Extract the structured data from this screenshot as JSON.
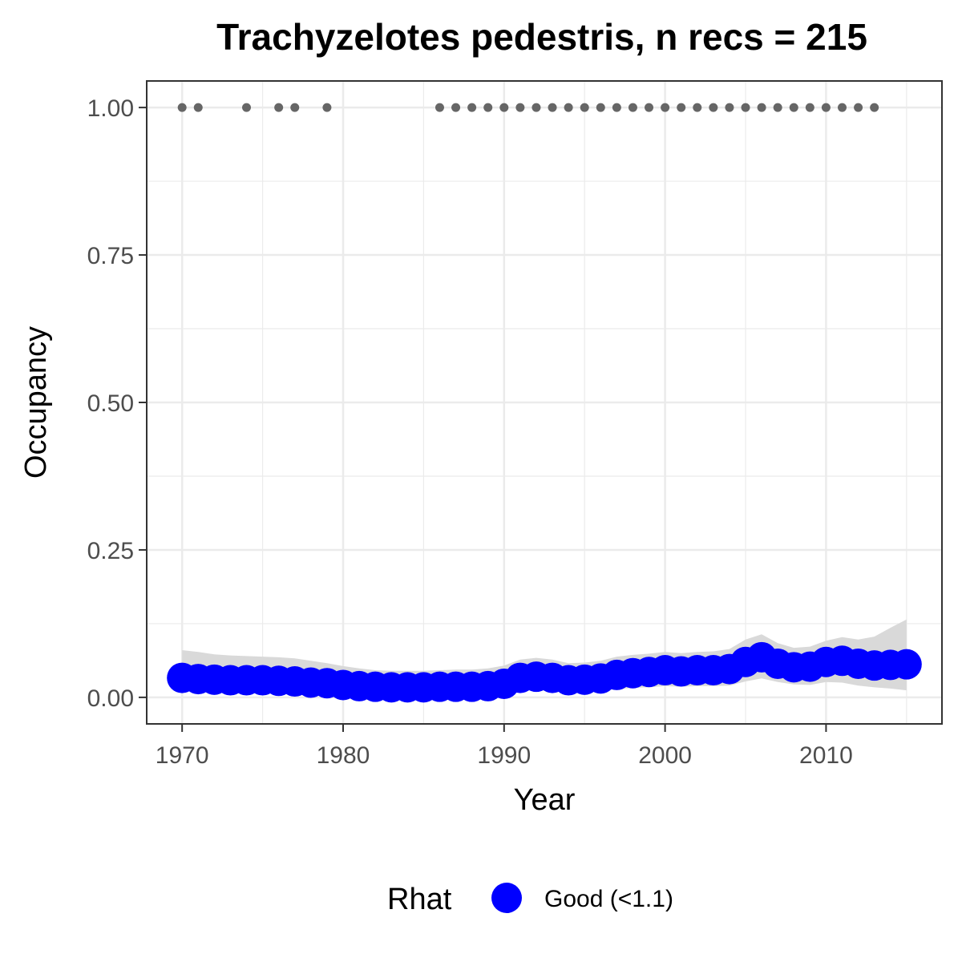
{
  "chart_data": {
    "type": "line",
    "title": "Trachyzelotes pedestris, n recs = 215",
    "xlabel": "Year",
    "ylabel": "Occupancy",
    "xlim": [
      1967.8,
      2017.2
    ],
    "ylim": [
      -0.045,
      1.045
    ],
    "x_ticks": [
      1970,
      1980,
      1990,
      2000,
      2010
    ],
    "x_tick_labels": [
      "1970",
      "1980",
      "1990",
      "2000",
      "2010"
    ],
    "y_ticks": [
      0,
      0.25,
      0.5,
      0.75,
      1.0
    ],
    "y_tick_labels": [
      "0.00",
      "0.25",
      "0.50",
      "0.75",
      "1.00"
    ],
    "grid": true,
    "legend": {
      "title": "Rhat",
      "position": "bottom",
      "entries": [
        {
          "label": "Good (<1.1)",
          "color": "#0000ff"
        }
      ]
    },
    "colors": {
      "points": "#0000ff",
      "ribbon": "#d9d9d9",
      "records": "#666666",
      "grid": "#ebebeb",
      "panel_border": "#333333"
    },
    "series": [
      {
        "name": "Good (<1.1)",
        "x": [
          1970,
          1971,
          1972,
          1973,
          1974,
          1975,
          1976,
          1977,
          1978,
          1979,
          1980,
          1981,
          1982,
          1983,
          1984,
          1985,
          1986,
          1987,
          1988,
          1989,
          1990,
          1991,
          1992,
          1993,
          1994,
          1995,
          1996,
          1997,
          1998,
          1999,
          2000,
          2001,
          2002,
          2003,
          2004,
          2005,
          2006,
          2007,
          2008,
          2009,
          2010,
          2011,
          2012,
          2013,
          2014,
          2015
        ],
        "y": [
          0.033,
          0.031,
          0.03,
          0.029,
          0.029,
          0.029,
          0.028,
          0.027,
          0.025,
          0.024,
          0.021,
          0.019,
          0.018,
          0.017,
          0.017,
          0.017,
          0.018,
          0.018,
          0.018,
          0.019,
          0.023,
          0.033,
          0.035,
          0.033,
          0.029,
          0.03,
          0.032,
          0.038,
          0.041,
          0.043,
          0.046,
          0.044,
          0.046,
          0.046,
          0.048,
          0.06,
          0.068,
          0.057,
          0.051,
          0.052,
          0.06,
          0.062,
          0.057,
          0.054,
          0.055,
          0.056
        ],
        "lower": [
          0.013,
          0.012,
          0.012,
          0.011,
          0.011,
          0.011,
          0.01,
          0.01,
          0.009,
          0.008,
          0.007,
          0.006,
          0.005,
          0.005,
          0.005,
          0.005,
          0.005,
          0.005,
          0.005,
          0.006,
          0.007,
          0.011,
          0.012,
          0.011,
          0.01,
          0.01,
          0.011,
          0.014,
          0.016,
          0.017,
          0.019,
          0.018,
          0.019,
          0.019,
          0.02,
          0.027,
          0.032,
          0.026,
          0.022,
          0.021,
          0.026,
          0.025,
          0.02,
          0.017,
          0.015,
          0.012
        ],
        "upper": [
          0.08,
          0.077,
          0.073,
          0.071,
          0.07,
          0.069,
          0.068,
          0.066,
          0.062,
          0.058,
          0.053,
          0.049,
          0.046,
          0.045,
          0.045,
          0.045,
          0.046,
          0.047,
          0.047,
          0.049,
          0.054,
          0.064,
          0.067,
          0.064,
          0.058,
          0.059,
          0.062,
          0.069,
          0.072,
          0.074,
          0.077,
          0.075,
          0.077,
          0.078,
          0.082,
          0.098,
          0.107,
          0.092,
          0.084,
          0.086,
          0.096,
          0.102,
          0.098,
          0.103,
          0.118,
          0.132
        ]
      }
    ],
    "records": {
      "y": 1.0,
      "x": [
        1970,
        1971,
        1974,
        1976,
        1977,
        1979,
        1986,
        1987,
        1988,
        1989,
        1990,
        1991,
        1992,
        1993,
        1994,
        1995,
        1996,
        1997,
        1998,
        1999,
        2000,
        2001,
        2002,
        2003,
        2004,
        2005,
        2006,
        2007,
        2008,
        2009,
        2010,
        2011,
        2012,
        2013
      ]
    }
  }
}
